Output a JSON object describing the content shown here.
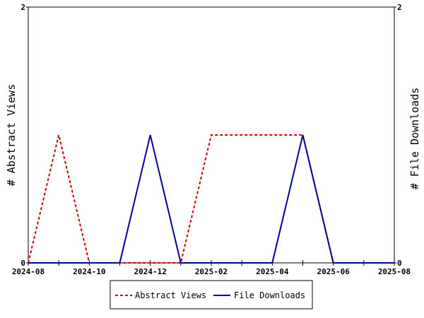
{
  "chart_data": {
    "type": "line",
    "x": [
      "2024-08",
      "2024-09",
      "2024-10",
      "2024-11",
      "2024-12",
      "2025-01",
      "2025-02",
      "2025-03",
      "2025-04",
      "2025-05",
      "2025-06",
      "2025-07",
      "2025-08"
    ],
    "xticks": [
      "2024-08",
      "2024-10",
      "2024-12",
      "2025-02",
      "2025-04",
      "2025-06",
      "2025-08"
    ],
    "series": [
      {
        "name": "Abstract Views",
        "axis": "left",
        "color": "#cc0000",
        "style": "dashed",
        "values": [
          0,
          1,
          0,
          0,
          0,
          0,
          1,
          1,
          1,
          1,
          0,
          0,
          0
        ]
      },
      {
        "name": "File Downloads",
        "axis": "right",
        "color": "#000099",
        "style": "solid",
        "values": [
          0,
          0,
          0,
          0,
          1,
          0,
          0,
          0,
          0,
          1,
          0,
          0,
          0
        ]
      }
    ],
    "ylabel_left": "# Abstract Views",
    "ylabel_right": "# File Downloads",
    "ylim": [
      0,
      2
    ],
    "yticks_left": [
      "0",
      "2"
    ],
    "yticks_right": [
      "0",
      "2"
    ],
    "legend": "bottom-center",
    "grid": false
  }
}
